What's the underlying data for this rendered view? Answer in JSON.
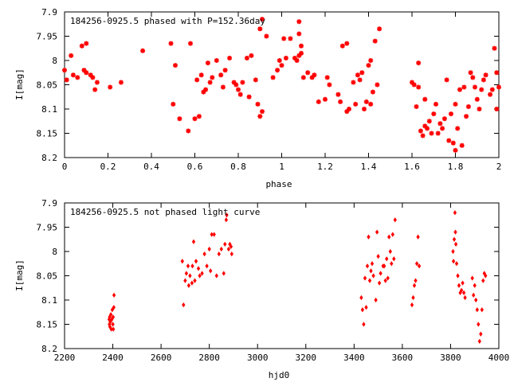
{
  "chart_data": [
    {
      "type": "scatter",
      "title": "184256-0925.5 phased with P=152.36day",
      "xlabel": "phase",
      "ylabel": "I[mag]",
      "xlim": [
        0,
        2
      ],
      "ylim": [
        8.2,
        7.9
      ],
      "y_inverted": true,
      "xticks": [
        "0",
        "0.2",
        "0.4",
        "0.6",
        "0.8",
        "1",
        "1.2",
        "1.4",
        "1.6",
        "1.8",
        "2"
      ],
      "yticks": [
        "7.9",
        "7.95",
        "8",
        "8.05",
        "8.1",
        "8.15",
        "8.2"
      ],
      "marker": "star",
      "color": "#ff0000",
      "points": [
        [
          0.0,
          8.02
        ],
        [
          0.01,
          8.04
        ],
        [
          0.03,
          7.99
        ],
        [
          0.04,
          8.03
        ],
        [
          0.06,
          8.035
        ],
        [
          0.08,
          7.97
        ],
        [
          0.09,
          8.02
        ],
        [
          0.1,
          7.965
        ],
        [
          0.1,
          8.025
        ],
        [
          0.12,
          8.03
        ],
        [
          0.13,
          8.035
        ],
        [
          0.14,
          8.06
        ],
        [
          0.15,
          8.045
        ],
        [
          0.21,
          8.055
        ],
        [
          0.26,
          8.045
        ],
        [
          0.36,
          7.98
        ],
        [
          0.49,
          7.965
        ],
        [
          0.5,
          8.09
        ],
        [
          0.51,
          8.01
        ],
        [
          0.53,
          8.12
        ],
        [
          0.57,
          8.145
        ],
        [
          0.58,
          7.965
        ],
        [
          0.6,
          8.12
        ],
        [
          0.61,
          8.04
        ],
        [
          0.62,
          8.115
        ],
        [
          0.63,
          8.03
        ],
        [
          0.64,
          8.065
        ],
        [
          0.65,
          8.06
        ],
        [
          0.66,
          8.005
        ],
        [
          0.67,
          8.045
        ],
        [
          0.68,
          8.035
        ],
        [
          0.7,
          8.0
        ],
        [
          0.72,
          8.03
        ],
        [
          0.73,
          8.055
        ],
        [
          0.74,
          8.02
        ],
        [
          0.76,
          7.995
        ],
        [
          0.78,
          8.045
        ],
        [
          0.79,
          8.05
        ],
        [
          0.8,
          8.06
        ],
        [
          0.81,
          8.07
        ],
        [
          0.82,
          8.045
        ],
        [
          0.84,
          7.995
        ],
        [
          0.85,
          8.075
        ],
        [
          0.86,
          7.99
        ],
        [
          0.88,
          8.04
        ],
        [
          0.89,
          8.09
        ],
        [
          0.9,
          7.935
        ],
        [
          0.9,
          8.115
        ],
        [
          0.91,
          8.105
        ],
        [
          0.91,
          7.915
        ],
        [
          0.93,
          7.95
        ],
        [
          0.96,
          8.035
        ],
        [
          0.98,
          8.02
        ],
        [
          0.99,
          8.0
        ],
        [
          1.0,
          8.01
        ],
        [
          1.01,
          7.955
        ],
        [
          1.02,
          7.995
        ],
        [
          1.04,
          7.955
        ],
        [
          1.06,
          7.995
        ],
        [
          1.07,
          8.0
        ],
        [
          1.08,
          7.92
        ],
        [
          1.08,
          7.945
        ],
        [
          1.08,
          7.99
        ],
        [
          1.09,
          7.97
        ],
        [
          1.09,
          7.985
        ],
        [
          1.1,
          8.035
        ],
        [
          1.12,
          8.025
        ],
        [
          1.14,
          8.035
        ],
        [
          1.15,
          8.03
        ],
        [
          1.17,
          8.085
        ],
        [
          1.2,
          8.08
        ],
        [
          1.21,
          8.035
        ],
        [
          1.22,
          8.05
        ],
        [
          1.26,
          8.07
        ],
        [
          1.27,
          8.085
        ],
        [
          1.28,
          7.97
        ],
        [
          1.3,
          8.105
        ],
        [
          1.3,
          7.965
        ],
        [
          1.31,
          8.1
        ],
        [
          1.33,
          8.045
        ],
        [
          1.34,
          8.09
        ],
        [
          1.35,
          8.03
        ],
        [
          1.36,
          8.04
        ],
        [
          1.37,
          8.025
        ],
        [
          1.38,
          8.1
        ],
        [
          1.39,
          8.085
        ],
        [
          1.4,
          8.01
        ],
        [
          1.41,
          8.09
        ],
        [
          1.41,
          8.0
        ],
        [
          1.42,
          8.065
        ],
        [
          1.43,
          7.96
        ],
        [
          1.44,
          8.05
        ],
        [
          1.45,
          7.935
        ],
        [
          1.6,
          8.045
        ],
        [
          1.61,
          8.05
        ],
        [
          1.62,
          8.095
        ],
        [
          1.63,
          8.005
        ],
        [
          1.63,
          8.055
        ],
        [
          1.64,
          8.145
        ],
        [
          1.65,
          8.155
        ],
        [
          1.66,
          8.135
        ],
        [
          1.66,
          8.08
        ],
        [
          1.67,
          8.14
        ],
        [
          1.68,
          8.125
        ],
        [
          1.69,
          8.15
        ],
        [
          1.7,
          8.11
        ],
        [
          1.71,
          8.09
        ],
        [
          1.72,
          8.15
        ],
        [
          1.73,
          8.13
        ],
        [
          1.74,
          8.14
        ],
        [
          1.75,
          8.12
        ],
        [
          1.76,
          8.04
        ],
        [
          1.77,
          8.165
        ],
        [
          1.78,
          8.11
        ],
        [
          1.79,
          8.17
        ],
        [
          1.8,
          8.185
        ],
        [
          1.8,
          8.09
        ],
        [
          1.81,
          8.14
        ],
        [
          1.82,
          8.06
        ],
        [
          1.83,
          8.175
        ],
        [
          1.84,
          8.055
        ],
        [
          1.85,
          8.115
        ],
        [
          1.86,
          8.095
        ],
        [
          1.87,
          8.025
        ],
        [
          1.88,
          8.035
        ],
        [
          1.89,
          8.055
        ],
        [
          1.9,
          8.08
        ],
        [
          1.91,
          8.1
        ],
        [
          1.92,
          8.06
        ],
        [
          1.93,
          8.04
        ],
        [
          1.94,
          8.03
        ],
        [
          1.96,
          8.07
        ],
        [
          1.97,
          8.06
        ],
        [
          1.98,
          7.975
        ],
        [
          1.99,
          8.1
        ],
        [
          1.99,
          8.025
        ],
        [
          2.0,
          8.055
        ]
      ]
    },
    {
      "type": "scatter",
      "title": "184256-0925.5 not phased light curve",
      "xlabel": "hjd0",
      "ylabel": "I[mag]",
      "xlim": [
        2200,
        4000
      ],
      "ylim": [
        8.2,
        7.9
      ],
      "y_inverted": true,
      "xticks": [
        "2200",
        "2400",
        "2600",
        "2800",
        "3000",
        "3200",
        "3400",
        "3600",
        "3800",
        "4000"
      ],
      "yticks": [
        "7.9",
        "7.95",
        "8",
        "8.05",
        "8.1",
        "8.15",
        "8.2"
      ],
      "marker": "diamond",
      "color": "#ff0000",
      "points": [
        [
          2385,
          8.14
        ],
        [
          2386,
          8.15
        ],
        [
          2387,
          8.135
        ],
        [
          2388,
          8.155
        ],
        [
          2390,
          8.145
        ],
        [
          2392,
          8.13
        ],
        [
          2394,
          8.16
        ],
        [
          2396,
          8.14
        ],
        [
          2398,
          8.12
        ],
        [
          2400,
          8.15
        ],
        [
          2401,
          8.135
        ],
        [
          2402,
          8.16
        ],
        [
          2404,
          8.115
        ],
        [
          2405,
          8.09
        ],
        [
          2688,
          8.02
        ],
        [
          2693,
          8.11
        ],
        [
          2700,
          8.06
        ],
        [
          2705,
          8.045
        ],
        [
          2712,
          8.03
        ],
        [
          2715,
          8.07
        ],
        [
          2720,
          8.05
        ],
        [
          2728,
          8.065
        ],
        [
          2730,
          8.03
        ],
        [
          2735,
          7.98
        ],
        [
          2740,
          8.06
        ],
        [
          2745,
          8.02
        ],
        [
          2755,
          8.035
        ],
        [
          2760,
          8.05
        ],
        [
          2770,
          8.045
        ],
        [
          2780,
          8.005
        ],
        [
          2790,
          8.03
        ],
        [
          2800,
          7.995
        ],
        [
          2805,
          8.04
        ],
        [
          2810,
          7.965
        ],
        [
          2820,
          7.965
        ],
        [
          2830,
          8.05
        ],
        [
          2840,
          8.005
        ],
        [
          2850,
          7.995
        ],
        [
          2860,
          8.045
        ],
        [
          2865,
          7.985
        ],
        [
          2870,
          7.935
        ],
        [
          2872,
          7.925
        ],
        [
          2880,
          7.995
        ],
        [
          2885,
          7.985
        ],
        [
          2890,
          7.99
        ],
        [
          2893,
          8.005
        ],
        [
          3430,
          8.095
        ],
        [
          3435,
          8.12
        ],
        [
          3440,
          8.15
        ],
        [
          3445,
          8.055
        ],
        [
          3450,
          8.115
        ],
        [
          3455,
          8.03
        ],
        [
          3460,
          7.97
        ],
        [
          3465,
          8.06
        ],
        [
          3470,
          8.04
        ],
        [
          3475,
          8.025
        ],
        [
          3480,
          8.05
        ],
        [
          3490,
          8.1
        ],
        [
          3495,
          7.96
        ],
        [
          3500,
          8.01
        ],
        [
          3505,
          8.065
        ],
        [
          3510,
          8.045
        ],
        [
          3520,
          8.03
        ],
        [
          3525,
          8.03
        ],
        [
          3530,
          8.06
        ],
        [
          3535,
          8.015
        ],
        [
          3540,
          8.055
        ],
        [
          3545,
          7.97
        ],
        [
          3550,
          8.0
        ],
        [
          3555,
          8.025
        ],
        [
          3560,
          7.965
        ],
        [
          3565,
          8.015
        ],
        [
          3570,
          7.935
        ],
        [
          3640,
          8.11
        ],
        [
          3645,
          8.095
        ],
        [
          3650,
          8.07
        ],
        [
          3655,
          8.06
        ],
        [
          3660,
          8.025
        ],
        [
          3665,
          7.97
        ],
        [
          3670,
          8.03
        ],
        [
          3810,
          8.0
        ],
        [
          3812,
          8.02
        ],
        [
          3815,
          7.975
        ],
        [
          3818,
          7.92
        ],
        [
          3820,
          7.96
        ],
        [
          3822,
          7.985
        ],
        [
          3825,
          8.025
        ],
        [
          3830,
          8.05
        ],
        [
          3835,
          8.07
        ],
        [
          3840,
          8.085
        ],
        [
          3845,
          8.08
        ],
        [
          3850,
          8.065
        ],
        [
          3855,
          8.085
        ],
        [
          3860,
          8.095
        ],
        [
          3890,
          8.055
        ],
        [
          3895,
          8.09
        ],
        [
          3900,
          8.07
        ],
        [
          3905,
          8.1
        ],
        [
          3910,
          8.12
        ],
        [
          3915,
          8.15
        ],
        [
          3920,
          8.185
        ],
        [
          3925,
          8.17
        ],
        [
          3930,
          8.12
        ],
        [
          3935,
          8.06
        ],
        [
          3940,
          8.045
        ],
        [
          3945,
          8.05
        ]
      ]
    }
  ]
}
